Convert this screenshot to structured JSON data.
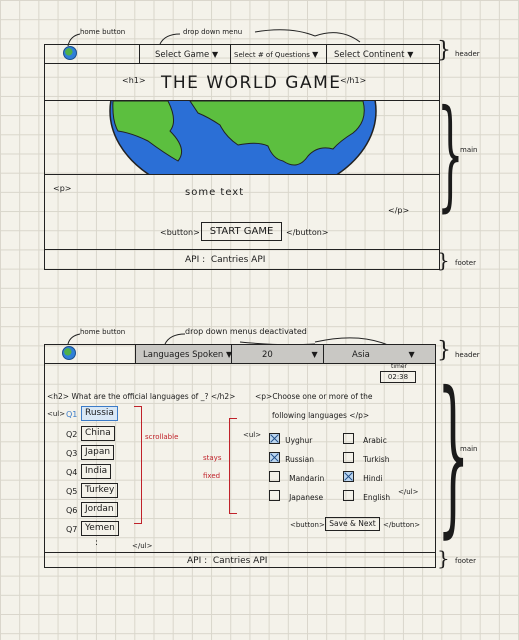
{
  "annotations": {
    "home_button_1": "home button",
    "dropdown_menu_1": "drop down menu",
    "header_1": "header",
    "main_1": "main",
    "footer_1": "footer",
    "home_button_2": "home button",
    "dropdown_menus_2": "drop down menus deactivated",
    "header_2": "header",
    "main_2": "main",
    "footer_2": "footer",
    "scrollable": "scrollable",
    "stays_fixed_1": "stays",
    "stays_fixed_2": "fixed"
  },
  "screen1": {
    "dropdowns": [
      "Select Game",
      "Select # of Questions",
      "Select Continent"
    ],
    "h1_open": "<h1>",
    "title": "THE WORLD GAME",
    "h1_close": "</h1>",
    "p_open": "<p>",
    "p_text": "some text",
    "p_close": "</p>",
    "button_open": "<button>",
    "button_label": "START GAME",
    "button_close": "</button>",
    "footer": "API :  Cantries API"
  },
  "screen2": {
    "dropdowns": [
      "Languages Spoken",
      "20",
      "Asia"
    ],
    "timer_label": "timer",
    "timer_value": "02:38",
    "h2_text": "<h2> What are the official languages of _? </h2>",
    "p_text_1": "<p>Choose one or more of the",
    "p_text_2": "following languages </p>",
    "ul_open": "<ul>",
    "ul_close": "</ul>",
    "ul_open_2": "<ul>",
    "ul_close_2": "</ul>",
    "questions": [
      {
        "num": "Q1",
        "country": "Russia"
      },
      {
        "num": "Q2",
        "country": "China"
      },
      {
        "num": "Q3",
        "country": "Japan"
      },
      {
        "num": "Q4",
        "country": "India"
      },
      {
        "num": "Q5",
        "country": "Turkey"
      },
      {
        "num": "Q6",
        "country": "Jordan"
      },
      {
        "num": "Q7",
        "country": "Yemen"
      }
    ],
    "ellipsis": ":",
    "languages": [
      {
        "label": "Uyghur",
        "checked": true
      },
      {
        "label": "Arabic",
        "checked": false
      },
      {
        "label": "Russian",
        "checked": true
      },
      {
        "label": "Turkish",
        "checked": false
      },
      {
        "label": "Mandarin",
        "checked": false
      },
      {
        "label": "Hindi",
        "checked": true
      },
      {
        "label": "Japanese",
        "checked": false
      },
      {
        "label": "English",
        "checked": false
      }
    ],
    "button_open": "<button>",
    "button_label": "Save & Next",
    "button_close": "</button>",
    "footer": "API :  Cantries API"
  }
}
